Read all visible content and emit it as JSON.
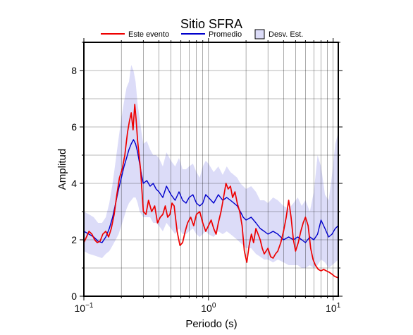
{
  "chart_data": {
    "type": "line",
    "title": "Sitio SFRA",
    "xlabel": "Periodo (s)",
    "ylabel": "Amplitud",
    "xscale": "log",
    "xlim": [
      0.1,
      11
    ],
    "ylim": [
      0,
      9
    ],
    "grid": true,
    "legend_position": "top",
    "x_ticks": [
      0.1,
      1,
      10
    ],
    "x_tick_labels": [
      {
        "base": "10",
        "exp": "−1"
      },
      {
        "base": "10",
        "exp": "0"
      },
      {
        "base": "10",
        "exp": "1"
      }
    ],
    "y_ticks": [
      0,
      2,
      4,
      6,
      8
    ],
    "y_tick_labels": [
      "0",
      "2",
      "4",
      "6",
      "8"
    ],
    "legend": {
      "este_evento": "Este evento",
      "promedio": "Promedio",
      "desv_est": "Desv. Est."
    },
    "colors": {
      "este_evento": "#ee0000",
      "promedio": "#0000cc",
      "desv_est_fill": "#dcdcf8",
      "desv_est_edge": "#000000"
    },
    "series": [
      {
        "name": "Este evento",
        "x": [
          0.1,
          0.105,
          0.11,
          0.116,
          0.122,
          0.128,
          0.135,
          0.142,
          0.15,
          0.158,
          0.166,
          0.175,
          0.184,
          0.193,
          0.203,
          0.213,
          0.224,
          0.232,
          0.24,
          0.248,
          0.256,
          0.262,
          0.27,
          0.285,
          0.3,
          0.315,
          0.33,
          0.35,
          0.37,
          0.39,
          0.41,
          0.43,
          0.45,
          0.47,
          0.49,
          0.51,
          0.53,
          0.56,
          0.59,
          0.62,
          0.65,
          0.68,
          0.72,
          0.76,
          0.8,
          0.85,
          0.9,
          0.95,
          1.0,
          1.05,
          1.1,
          1.15,
          1.2,
          1.26,
          1.32,
          1.38,
          1.44,
          1.5,
          1.56,
          1.63,
          1.7,
          1.78,
          1.86,
          1.94,
          2.03,
          2.12,
          2.21,
          2.3,
          2.4,
          2.5,
          2.6,
          2.7,
          2.8,
          2.9,
          3.0,
          3.15,
          3.3,
          3.45,
          3.6,
          3.8,
          4.0,
          4.2,
          4.4,
          4.6,
          4.8,
          5.0,
          5.25,
          5.5,
          5.75,
          6.0,
          6.3,
          6.6,
          6.9,
          7.2,
          7.6,
          8.0,
          8.4,
          8.8,
          9.3,
          9.8,
          10.3,
          11.0
        ],
        "values": [
          1.9,
          2.1,
          2.3,
          2.2,
          2.0,
          1.9,
          1.95,
          2.2,
          2.3,
          2.1,
          2.4,
          2.9,
          3.6,
          4.2,
          4.5,
          5.0,
          5.8,
          6.2,
          6.5,
          5.9,
          6.8,
          6.3,
          5.5,
          4.5,
          3.0,
          2.9,
          3.4,
          3.0,
          3.2,
          2.6,
          2.8,
          2.9,
          3.2,
          2.8,
          2.9,
          3.3,
          3.2,
          2.3,
          1.8,
          1.9,
          2.3,
          2.6,
          2.8,
          2.5,
          2.9,
          3.0,
          2.6,
          2.3,
          2.5,
          2.7,
          2.4,
          2.2,
          2.6,
          3.0,
          3.5,
          4.0,
          3.8,
          3.9,
          3.5,
          3.7,
          3.3,
          3.0,
          2.5,
          1.6,
          1.2,
          1.8,
          2.2,
          1.9,
          2.4,
          2.2,
          2.0,
          1.7,
          1.5,
          1.6,
          1.7,
          1.4,
          1.35,
          1.5,
          1.6,
          1.9,
          2.3,
          2.8,
          3.4,
          2.8,
          2.0,
          1.6,
          1.9,
          2.3,
          2.6,
          2.8,
          2.5,
          1.7,
          1.3,
          1.1,
          0.95,
          0.9,
          0.95,
          0.9,
          0.85,
          0.78,
          0.7,
          0.65
        ]
      },
      {
        "name": "Promedio",
        "x": [
          0.1,
          0.11,
          0.12,
          0.13,
          0.14,
          0.15,
          0.16,
          0.17,
          0.18,
          0.19,
          0.2,
          0.21,
          0.22,
          0.23,
          0.24,
          0.25,
          0.26,
          0.27,
          0.28,
          0.29,
          0.3,
          0.32,
          0.34,
          0.36,
          0.38,
          0.4,
          0.43,
          0.46,
          0.5,
          0.54,
          0.58,
          0.62,
          0.66,
          0.7,
          0.75,
          0.8,
          0.85,
          0.9,
          0.95,
          1.0,
          1.1,
          1.2,
          1.3,
          1.4,
          1.5,
          1.6,
          1.7,
          1.8,
          1.9,
          2.0,
          2.2,
          2.4,
          2.6,
          2.8,
          3.0,
          3.3,
          3.6,
          4.0,
          4.4,
          4.8,
          5.2,
          5.6,
          6.0,
          6.5,
          7.0,
          7.5,
          8.0,
          8.6,
          9.2,
          9.8,
          10.4,
          11.0
        ],
        "values": [
          2.3,
          2.2,
          2.1,
          1.95,
          1.9,
          2.1,
          2.4,
          2.8,
          3.3,
          3.8,
          4.2,
          4.6,
          4.9,
          5.2,
          5.4,
          5.55,
          5.4,
          5.1,
          4.7,
          4.3,
          4.0,
          4.1,
          3.9,
          4.0,
          3.8,
          3.7,
          3.5,
          3.9,
          3.6,
          3.4,
          3.7,
          3.4,
          3.3,
          3.5,
          3.6,
          3.3,
          3.2,
          3.3,
          3.6,
          3.5,
          3.3,
          3.6,
          3.4,
          3.5,
          3.4,
          3.3,
          3.2,
          3.0,
          2.8,
          2.7,
          2.8,
          2.6,
          2.4,
          2.3,
          2.2,
          2.3,
          2.2,
          2.0,
          2.1,
          2.0,
          2.1,
          2.0,
          1.9,
          2.1,
          2.0,
          2.2,
          2.7,
          2.4,
          2.1,
          2.2,
          2.4,
          2.5
        ]
      }
    ],
    "band": {
      "name": "Desv. Est.",
      "x": [
        0.1,
        0.11,
        0.12,
        0.13,
        0.14,
        0.15,
        0.16,
        0.17,
        0.18,
        0.19,
        0.2,
        0.21,
        0.22,
        0.23,
        0.24,
        0.25,
        0.26,
        0.27,
        0.28,
        0.29,
        0.3,
        0.32,
        0.34,
        0.36,
        0.38,
        0.4,
        0.43,
        0.46,
        0.5,
        0.54,
        0.58,
        0.62,
        0.66,
        0.7,
        0.75,
        0.8,
        0.85,
        0.9,
        0.95,
        1.0,
        1.1,
        1.2,
        1.3,
        1.4,
        1.5,
        1.6,
        1.7,
        1.8,
        1.9,
        2.0,
        2.2,
        2.4,
        2.6,
        2.8,
        3.0,
        3.3,
        3.6,
        4.0,
        4.4,
        4.8,
        5.2,
        5.6,
        6.0,
        6.5,
        7.0,
        7.5,
        8.0,
        8.6,
        9.2,
        9.8,
        10.4,
        11.0
      ],
      "upper": [
        3.0,
        2.9,
        2.8,
        2.6,
        2.6,
        2.8,
        3.3,
        4.0,
        4.8,
        5.6,
        6.3,
        6.9,
        7.4,
        7.6,
        8.2,
        8.0,
        7.6,
        6.8,
        6.3,
        5.8,
        5.4,
        5.5,
        5.2,
        5.0,
        5.0,
        4.9,
        4.6,
        5.1,
        4.8,
        4.6,
        4.9,
        4.5,
        4.5,
        4.6,
        4.7,
        4.4,
        4.2,
        4.6,
        4.8,
        4.7,
        4.4,
        4.6,
        4.3,
        4.6,
        4.4,
        4.3,
        4.2,
        4.0,
        3.9,
        3.8,
        3.9,
        3.7,
        3.4,
        3.4,
        3.3,
        3.5,
        3.4,
        3.2,
        3.1,
        3.3,
        3.5,
        3.2,
        3.4,
        3.0,
        3.7,
        5.0,
        4.6,
        3.6,
        3.4,
        4.3,
        5.4,
        5.8
      ],
      "lower": [
        1.6,
        1.5,
        1.45,
        1.4,
        1.35,
        1.5,
        1.6,
        1.8,
        2.0,
        2.2,
        2.5,
        2.8,
        3.1,
        3.3,
        3.4,
        3.5,
        3.5,
        3.3,
        3.0,
        2.9,
        2.8,
        2.8,
        2.8,
        2.6,
        2.6,
        2.5,
        2.3,
        2.6,
        2.4,
        2.2,
        2.4,
        2.2,
        2.2,
        2.3,
        2.4,
        2.2,
        2.1,
        2.2,
        2.3,
        2.2,
        2.1,
        2.3,
        2.2,
        2.3,
        2.2,
        2.1,
        2.0,
        1.9,
        1.8,
        1.7,
        1.7,
        1.5,
        1.4,
        1.3,
        1.3,
        1.2,
        1.3,
        1.2,
        1.1,
        1.1,
        1.1,
        1.0,
        1.0,
        1.1,
        1.0,
        1.1,
        1.3,
        1.2,
        1.0,
        1.1,
        1.2,
        1.3
      ]
    }
  }
}
